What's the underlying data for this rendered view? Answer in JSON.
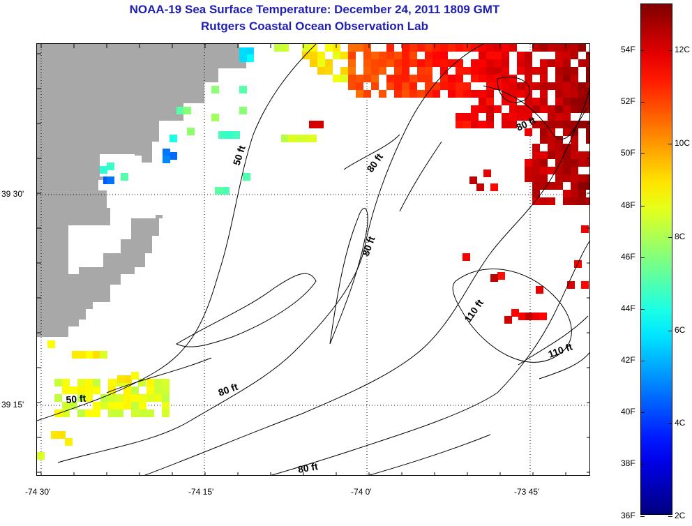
{
  "title": "NOAA-19 Sea Surface Temperature:  December 24, 2011 1809 GMT",
  "subtitle": "Rutgers Coastal Ocean Observation Lab",
  "x_ticks": [
    "-74 30'",
    "-74 15'",
    "-74 0'",
    "-73 45'"
  ],
  "y_ticks": [
    "39 30'",
    "39 15'"
  ],
  "contour_labels": [
    {
      "text": "50 ft"
    },
    {
      "text": "80 ft"
    },
    {
      "text": "80 ft"
    },
    {
      "text": "80 ft"
    },
    {
      "text": "110 ft"
    },
    {
      "text": "110 ft"
    },
    {
      "text": "50 ft"
    },
    {
      "text": "80 ft"
    },
    {
      "text": "80 ft"
    }
  ],
  "colorbar": {
    "fahrenheit_labels": [
      "54F",
      "52F",
      "50F",
      "48F",
      "46F",
      "44F",
      "42F",
      "40F",
      "38F",
      "36F"
    ],
    "celsius_labels": [
      "12C",
      "10C",
      "8C",
      "6C",
      "4C",
      "2C"
    ],
    "range_c": [
      2,
      13
    ]
  },
  "colors": {
    "land": "#a8a8a8",
    "title": "#1f1fb4"
  }
}
